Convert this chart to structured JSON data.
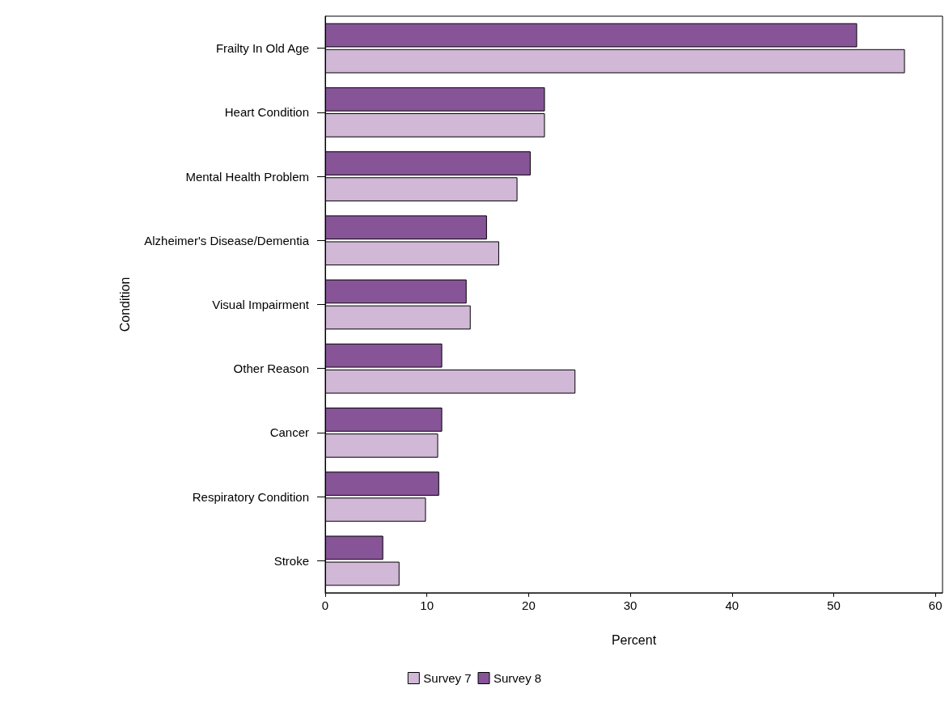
{
  "chart_data": {
    "type": "bar",
    "orientation": "horizontal",
    "xlabel": "Percent",
    "ylabel": "Condition",
    "categories": [
      "Frailty In Old Age",
      "Heart Condition",
      "Mental Health Problem",
      "Alzheimer's Disease/Dementia",
      "Visual Impairment",
      "Other Reason",
      "Cancer",
      "Respiratory Condition",
      "Stroke"
    ],
    "series": [
      {
        "name": "Survey 7",
        "color": "#d0b8d6",
        "values": [
          57.0,
          21.6,
          18.9,
          17.1,
          14.3,
          24.6,
          11.1,
          9.9,
          7.3
        ]
      },
      {
        "name": "Survey 8",
        "color": "#875597",
        "values": [
          52.3,
          21.6,
          20.2,
          15.9,
          13.9,
          11.5,
          11.5,
          11.2,
          5.7
        ]
      }
    ],
    "xlim": [
      0,
      60.7
    ],
    "xticks": [
      0,
      10,
      20,
      30,
      40,
      50,
      60
    ],
    "grid": false,
    "legend": "bottom"
  }
}
